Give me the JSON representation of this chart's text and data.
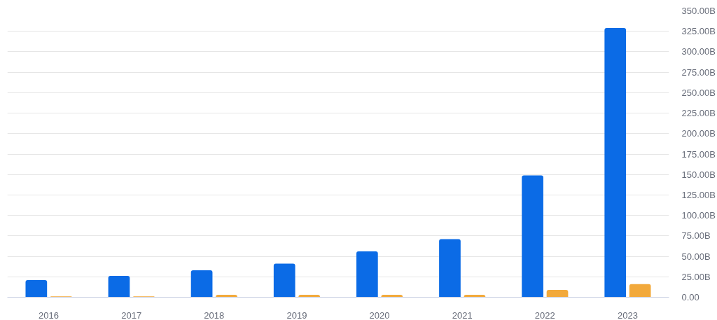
{
  "chart_data": {
    "type": "bar",
    "categories": [
      "2016",
      "2017",
      "2018",
      "2019",
      "2020",
      "2021",
      "2022",
      "2023"
    ],
    "series": [
      {
        "color": "#0b6be6",
        "values": [
          21,
          26,
          33,
          41,
          56,
          71,
          149,
          329
        ]
      },
      {
        "color": "#f2a93b",
        "values": [
          1,
          1,
          3,
          3,
          3,
          3,
          9,
          16
        ]
      }
    ],
    "ylim": [
      0,
      350
    ],
    "yticks": [
      {
        "value": 0,
        "label": "0.00"
      },
      {
        "value": 25,
        "label": "25.00B"
      },
      {
        "value": 50,
        "label": "50.00B"
      },
      {
        "value": 75,
        "label": "75.00B"
      },
      {
        "value": 100,
        "label": "100.00B"
      },
      {
        "value": 125,
        "label": "125.00B"
      },
      {
        "value": 150,
        "label": "150.00B"
      },
      {
        "value": 175,
        "label": "175.00B"
      },
      {
        "value": 200,
        "label": "200.00B"
      },
      {
        "value": 225,
        "label": "225.00B"
      },
      {
        "value": 250,
        "label": "250.00B"
      },
      {
        "value": 275,
        "label": "275.00B"
      },
      {
        "value": 300,
        "label": "300.00B"
      },
      {
        "value": 325,
        "label": "325.00B"
      },
      {
        "value": 350,
        "label": "350.00B"
      }
    ],
    "grid": "y"
  }
}
